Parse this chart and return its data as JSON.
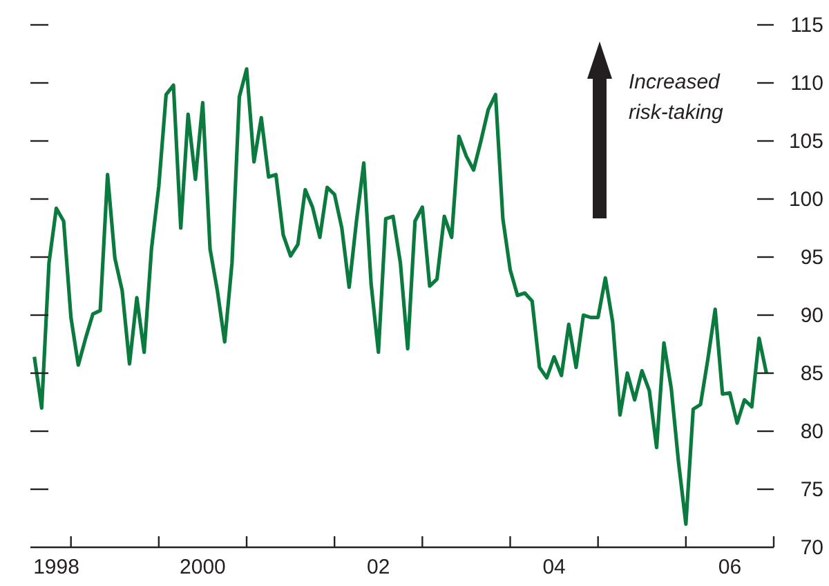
{
  "chart_data": {
    "type": "line",
    "annotations": [
      "Increased\nrisk-taking"
    ],
    "x": [
      "1998-08",
      "1998-09",
      "1998-10",
      "1998-11",
      "1998-12",
      "1999-01",
      "1999-02",
      "1999-03",
      "1999-04",
      "1999-05",
      "1999-06",
      "1999-07",
      "1999-08",
      "1999-09",
      "1999-10",
      "1999-11",
      "1999-12",
      "2000-01",
      "2000-02",
      "2000-03",
      "2000-04",
      "2000-05",
      "2000-06",
      "2000-07",
      "2000-08",
      "2000-09",
      "2000-10",
      "2000-11",
      "2000-12",
      "2001-01",
      "2001-02",
      "2001-03",
      "2001-04",
      "2001-05",
      "2001-06",
      "2001-07",
      "2001-08",
      "2001-09",
      "2001-10",
      "2001-11",
      "2001-12",
      "2002-01",
      "2002-02",
      "2002-03",
      "2002-04",
      "2002-05",
      "2002-06",
      "2002-07",
      "2002-08",
      "2002-09",
      "2002-10",
      "2002-11",
      "2002-12",
      "2003-01",
      "2003-02",
      "2003-03",
      "2003-04",
      "2003-05",
      "2003-06",
      "2003-07",
      "2003-08",
      "2003-09",
      "2003-10",
      "2003-11",
      "2003-12",
      "2004-01",
      "2004-02",
      "2004-03",
      "2004-04",
      "2004-05",
      "2004-06",
      "2004-07",
      "2004-08",
      "2004-09",
      "2004-10",
      "2004-11",
      "2004-12",
      "2005-01",
      "2005-02",
      "2005-03",
      "2005-04",
      "2005-05",
      "2005-06",
      "2005-07",
      "2005-08",
      "2005-09",
      "2005-10",
      "2005-11",
      "2005-12",
      "2006-01",
      "2006-02",
      "2006-03",
      "2006-04",
      "2006-05",
      "2006-06",
      "2006-07",
      "2006-08",
      "2006-09",
      "2006-10",
      "2006-11",
      "2006-12"
    ],
    "series": [
      {
        "color": "#0b7a3e",
        "values": [
          86.4,
          82.0,
          94.5,
          99.2,
          98.1,
          89.8,
          85.7,
          88.0,
          90.1,
          90.4,
          102.1,
          94.9,
          92.1,
          85.8,
          91.5,
          86.8,
          95.7,
          101.1,
          109.0,
          109.8,
          97.5,
          107.3,
          101.7,
          108.3,
          95.7,
          92.1,
          87.7,
          94.5,
          108.8,
          111.2,
          103.2,
          107.0,
          101.9,
          102.1,
          96.9,
          95.1,
          96.1,
          100.8,
          99.3,
          96.7,
          101.0,
          100.4,
          97.5,
          92.4,
          98.1,
          103.1,
          92.7,
          86.8,
          98.3,
          98.5,
          94.5,
          87.1,
          98.1,
          99.3,
          92.5,
          93.1,
          98.5,
          96.7,
          105.4,
          103.7,
          102.5,
          105.0,
          107.7,
          109.0,
          98.3,
          93.9,
          91.7,
          91.9,
          91.2,
          85.5,
          84.6,
          86.4,
          84.8,
          89.2,
          85.5,
          90.0,
          89.8,
          89.8,
          93.2,
          89.4,
          81.4,
          85.0,
          82.7,
          85.2,
          83.5,
          78.6,
          87.6,
          83.7,
          77.3,
          72.0,
          81.9,
          82.3,
          86.2,
          90.5,
          83.2,
          83.3,
          80.7,
          82.7,
          82.1,
          88.0,
          85.0
        ]
      }
    ],
    "xlim": [
      "1998-07-15",
      "2007-01"
    ],
    "xticks": [
      {
        "value": "1998-11",
        "label": "1998"
      },
      {
        "value": "1999",
        "label": null
      },
      {
        "value": "2000",
        "label": null
      },
      {
        "value": "2000-07",
        "label": "2000"
      },
      {
        "value": "2001",
        "label": null
      },
      {
        "value": "2002",
        "label": null
      },
      {
        "value": "2002-07",
        "label": "02"
      },
      {
        "value": "2003",
        "label": null
      },
      {
        "value": "2004",
        "label": null
      },
      {
        "value": "2004-07",
        "label": "04"
      },
      {
        "value": "2005",
        "label": null
      },
      {
        "value": "2006",
        "label": null
      },
      {
        "value": "2006-07",
        "label": "06"
      },
      {
        "value": "2007",
        "label": null
      }
    ],
    "ylim": [
      70,
      115
    ],
    "yticks": [
      70,
      75,
      80,
      85,
      90,
      95,
      100,
      105,
      110,
      115
    ],
    "marker": "none",
    "line_style": "solid",
    "legend": false,
    "grid": false
  }
}
